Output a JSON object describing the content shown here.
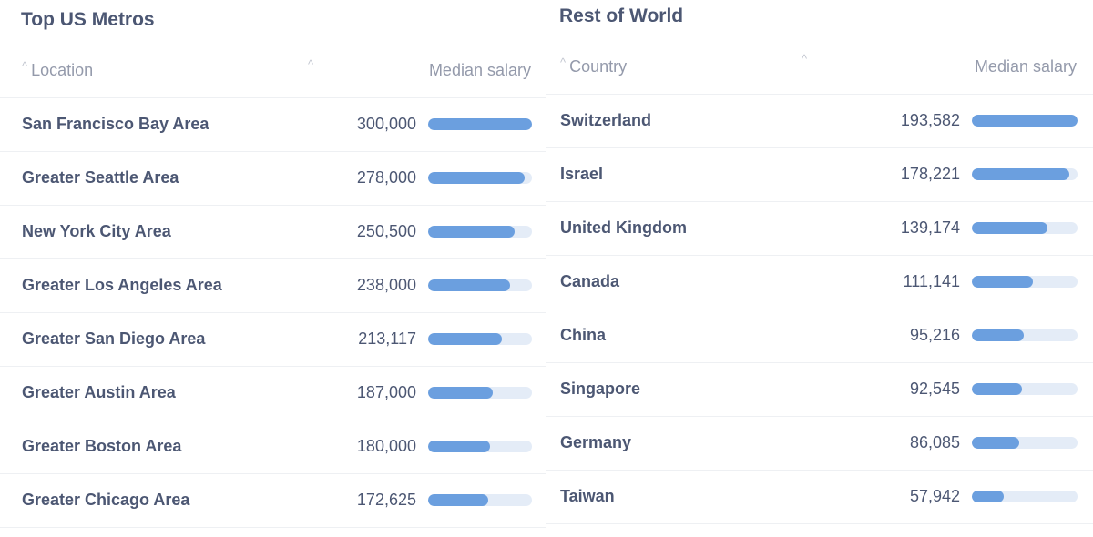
{
  "colors": {
    "bar_fill": "#6b9fdf",
    "bar_track": "#e4ecf7",
    "text": "#4c5773",
    "muted": "#949aab"
  },
  "us": {
    "title": "Top US Metros",
    "column_location": "Location",
    "column_metric": "Median salary",
    "max": 300000,
    "rows": [
      {
        "name": "San Francisco Bay Area",
        "value_text": "300,000",
        "value": 300000
      },
      {
        "name": "Greater Seattle Area",
        "value_text": "278,000",
        "value": 278000
      },
      {
        "name": "New York City Area",
        "value_text": "250,500",
        "value": 250500
      },
      {
        "name": "Greater Los Angeles Area",
        "value_text": "238,000",
        "value": 238000
      },
      {
        "name": "Greater San Diego Area",
        "value_text": "213,117",
        "value": 213117
      },
      {
        "name": "Greater Austin Area",
        "value_text": "187,000",
        "value": 187000
      },
      {
        "name": "Greater Boston Area",
        "value_text": "180,000",
        "value": 180000
      },
      {
        "name": "Greater Chicago Area",
        "value_text": "172,625",
        "value": 172625
      }
    ]
  },
  "world": {
    "title": "Rest of World",
    "column_location": "Country",
    "column_metric": "Median salary",
    "max": 193582,
    "rows": [
      {
        "name": "Switzerland",
        "value_text": "193,582",
        "value": 193582
      },
      {
        "name": "Israel",
        "value_text": "178,221",
        "value": 178221
      },
      {
        "name": "United Kingdom",
        "value_text": "139,174",
        "value": 139174
      },
      {
        "name": "Canada",
        "value_text": "111,141",
        "value": 111141
      },
      {
        "name": "China",
        "value_text": "95,216",
        "value": 95216
      },
      {
        "name": "Singapore",
        "value_text": "92,545",
        "value": 92545
      },
      {
        "name": "Germany",
        "value_text": "86,085",
        "value": 86085
      },
      {
        "name": "Taiwan",
        "value_text": "57,942",
        "value": 57942
      }
    ]
  }
}
